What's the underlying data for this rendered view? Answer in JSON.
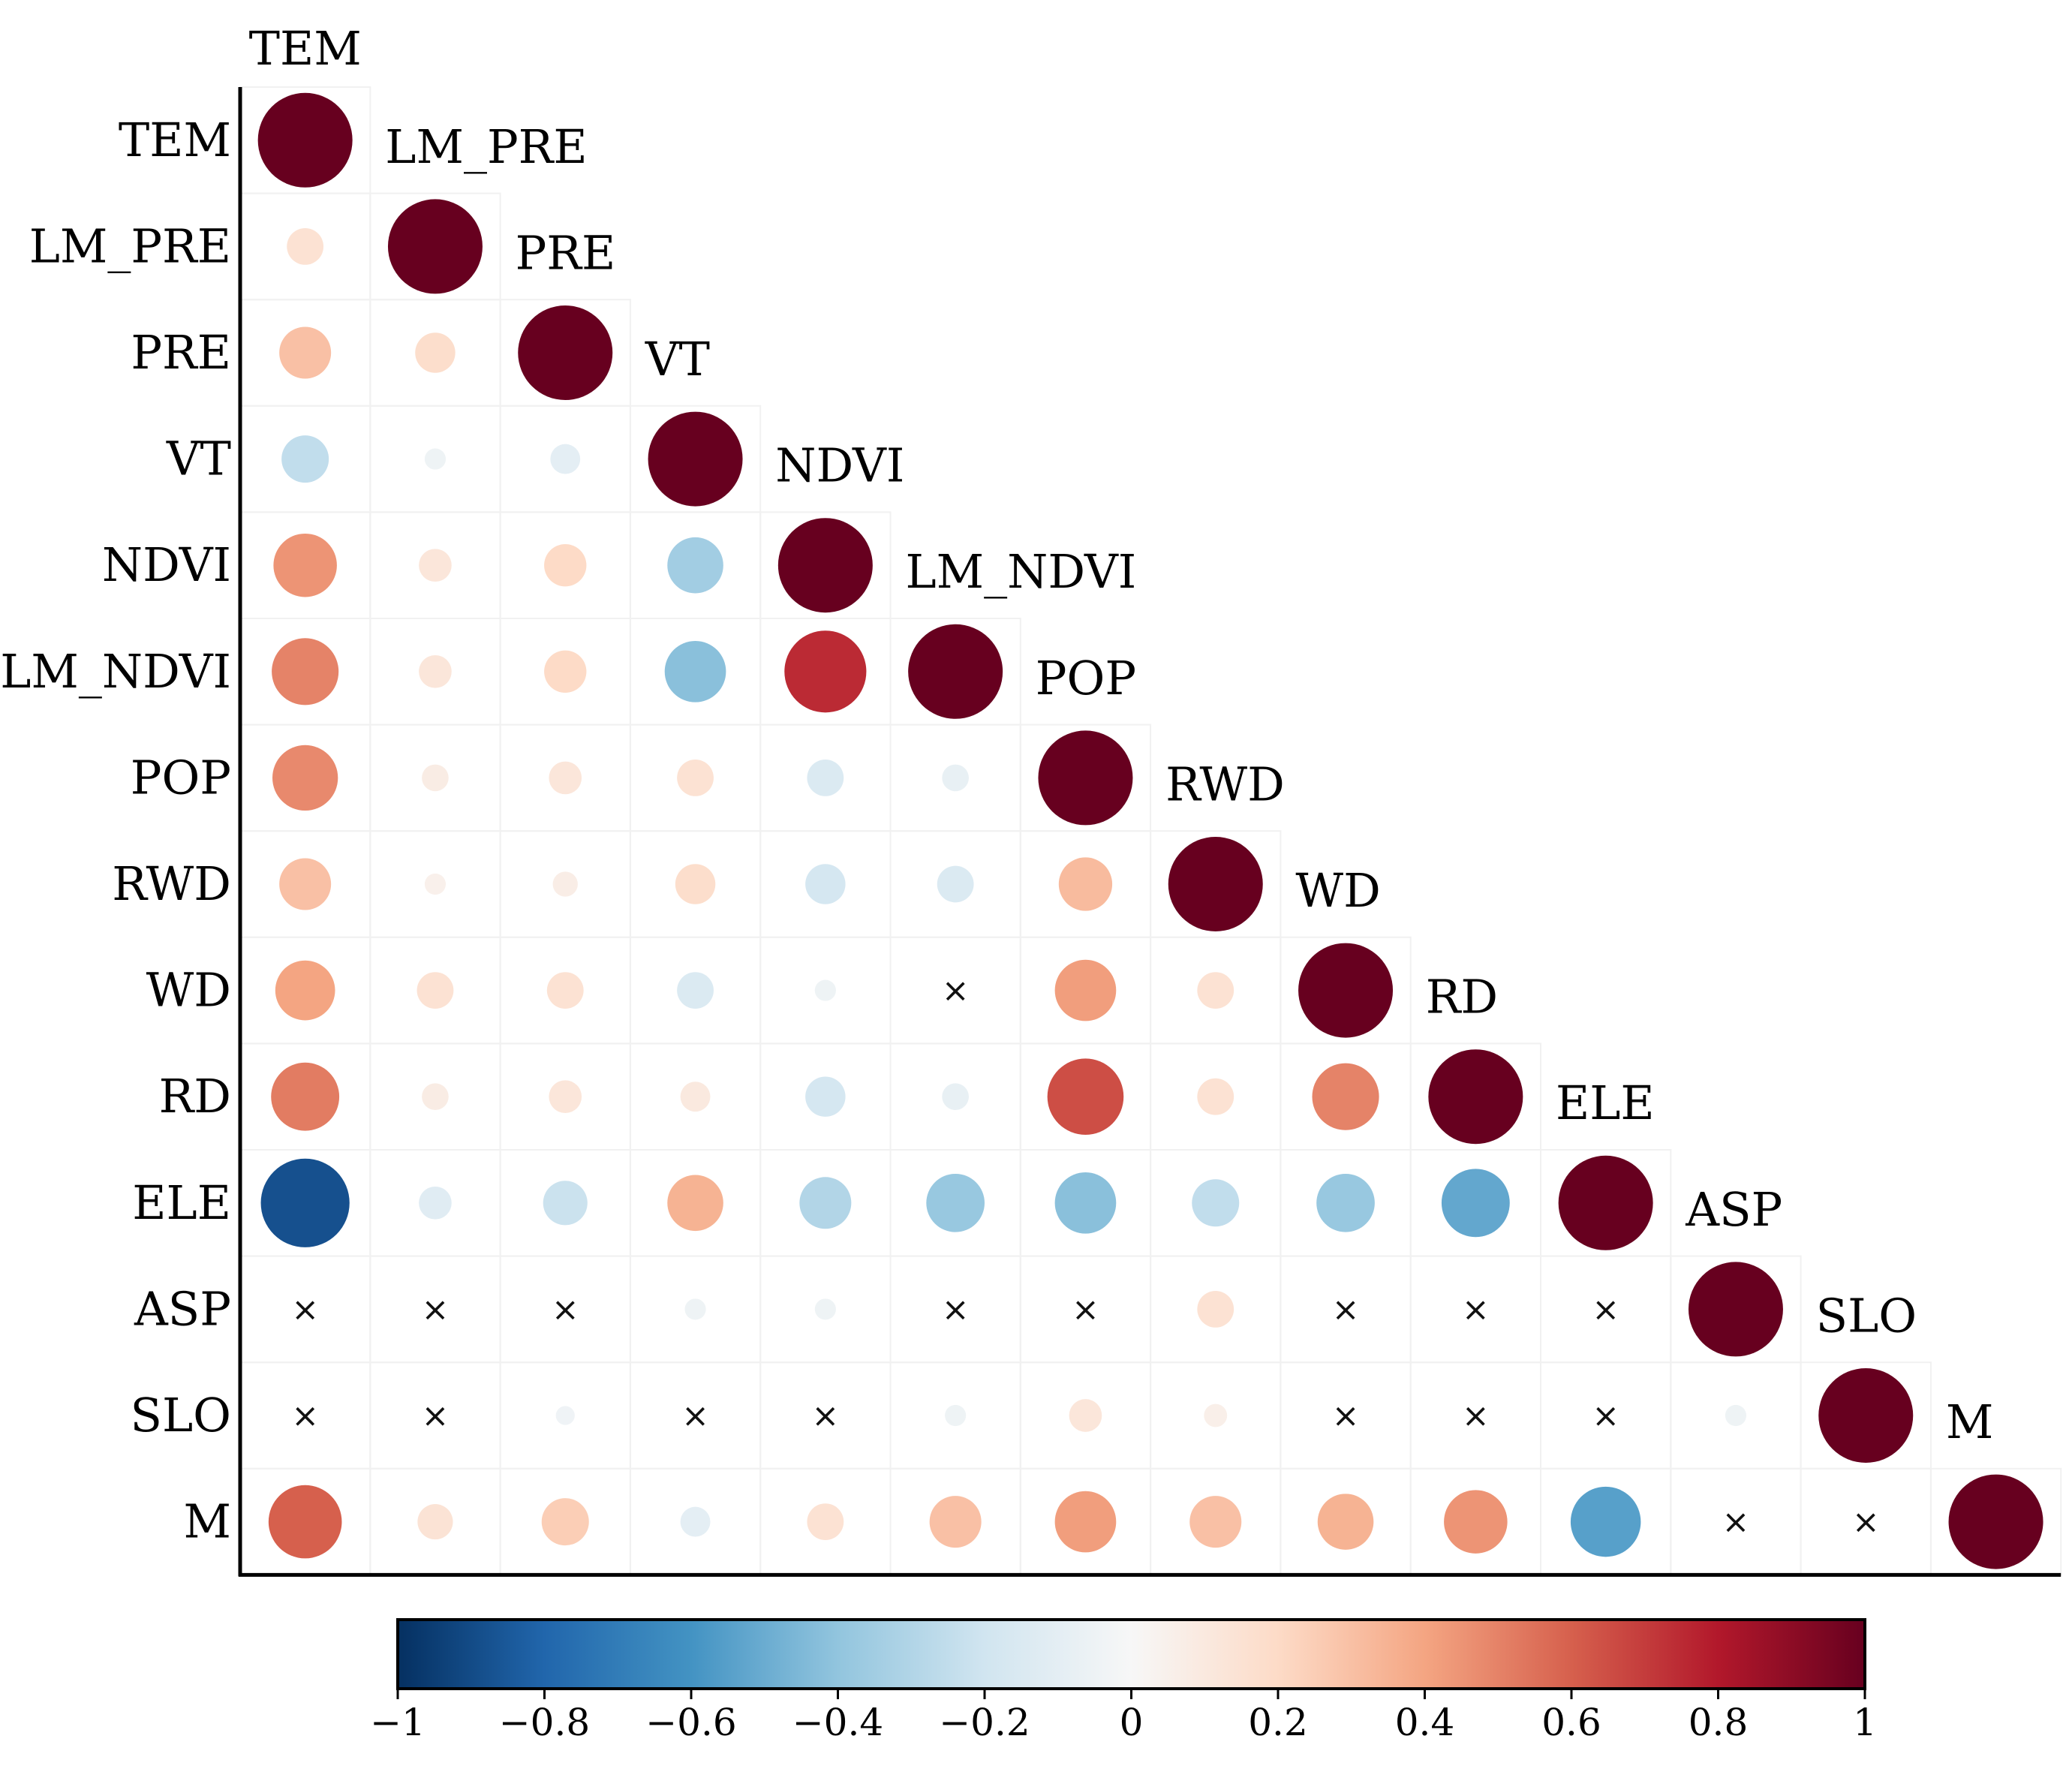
{
  "chart_data": {
    "type": "heatmap",
    "subtype": "correlation-circle-lower-triangle",
    "title": "",
    "variables": [
      "TEM",
      "LM_PRE",
      "PRE",
      "VT",
      "NDVI",
      "LM_NDVI",
      "POP",
      "RWD",
      "WD",
      "RD",
      "ELE",
      "ASP",
      "SLO",
      "M"
    ],
    "insignificant_marker": "×",
    "matrix": [
      [
        1.0
      ],
      [
        0.15,
        1.0
      ],
      [
        0.3,
        0.18,
        1.0
      ],
      [
        -0.25,
        -0.05,
        -0.1,
        1.0
      ],
      [
        0.45,
        0.12,
        0.2,
        -0.35,
        1.0
      ],
      [
        0.5,
        0.12,
        0.2,
        -0.42,
        0.75,
        1.0
      ],
      [
        0.48,
        0.08,
        0.12,
        0.15,
        -0.15,
        -0.08,
        1.0
      ],
      [
        0.3,
        0.05,
        0.07,
        0.18,
        -0.18,
        -0.15,
        0.32,
        1.0
      ],
      [
        0.4,
        0.15,
        0.15,
        -0.15,
        -0.05,
        null,
        0.42,
        0.15,
        1.0
      ],
      [
        0.52,
        0.08,
        0.12,
        0.1,
        -0.18,
        -0.08,
        0.65,
        0.15,
        0.5,
        1.0
      ],
      [
        -0.88,
        -0.12,
        -0.22,
        0.35,
        -0.3,
        -0.38,
        -0.42,
        -0.25,
        -0.38,
        -0.52,
        1.0
      ],
      [
        null,
        null,
        null,
        -0.05,
        -0.05,
        null,
        null,
        0.15,
        null,
        null,
        null,
        1.0
      ],
      [
        null,
        null,
        -0.04,
        null,
        null,
        -0.05,
        0.12,
        0.06,
        null,
        null,
        null,
        -0.05,
        1.0
      ],
      [
        0.6,
        0.14,
        0.25,
        -0.1,
        0.15,
        0.3,
        0.42,
        0.3,
        0.35,
        0.45,
        -0.55,
        null,
        null,
        1.0
      ]
    ],
    "colorbar": {
      "range": [
        -1,
        1
      ],
      "ticks": [
        "−1",
        "−0.8",
        "−0.6",
        "−0.4",
        "−0.2",
        "0",
        "0.2",
        "0.4",
        "0.6",
        "0.8",
        "1"
      ],
      "colors": [
        "#053061",
        "#2166ac",
        "#4393c3",
        "#92c5de",
        "#d1e5f0",
        "#f7f7f7",
        "#fddbc7",
        "#f4a582",
        "#d6604d",
        "#b2182b",
        "#67001f"
      ]
    }
  }
}
